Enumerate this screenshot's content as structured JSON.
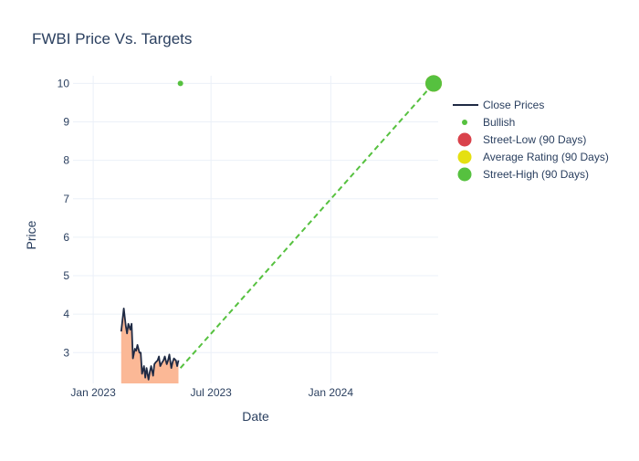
{
  "chart_data": {
    "type": "line",
    "title": "FWBI Price Vs. Targets",
    "xlabel": "Date",
    "ylabel": "Price",
    "xlim": [
      "2022-12-01",
      "2024-06-14"
    ],
    "ylim": [
      2.2,
      10.2
    ],
    "yticks": [
      3,
      4,
      5,
      6,
      7,
      8,
      9,
      10
    ],
    "xticks": [
      {
        "date": "2023-01-01",
        "label": "Jan 2023"
      },
      {
        "date": "2023-07-01",
        "label": "Jul 2023"
      },
      {
        "date": "2024-01-01",
        "label": "Jan 2024"
      }
    ],
    "grid": true,
    "legend_position": "right",
    "series": [
      {
        "name": "Close Prices",
        "color": "#1f2a44",
        "fill_color": "#fbb896",
        "x": [
          "2023-02-13",
          "2023-02-15",
          "2023-02-17",
          "2023-02-20",
          "2023-02-22",
          "2023-02-24",
          "2023-02-27",
          "2023-03-01",
          "2023-03-03",
          "2023-03-06",
          "2023-03-08",
          "2023-03-10",
          "2023-03-13",
          "2023-03-15",
          "2023-03-17",
          "2023-03-20",
          "2023-03-22",
          "2023-03-24",
          "2023-03-27",
          "2023-03-29",
          "2023-03-31",
          "2023-04-03",
          "2023-04-05",
          "2023-04-07",
          "2023-04-10",
          "2023-04-12",
          "2023-04-14",
          "2023-04-17",
          "2023-04-19",
          "2023-04-21",
          "2023-04-24",
          "2023-04-26",
          "2023-04-28",
          "2023-05-01",
          "2023-05-03",
          "2023-05-05",
          "2023-05-08",
          "2023-05-10",
          "2023-05-12"
        ],
        "y": [
          3.55,
          3.85,
          4.15,
          3.7,
          3.5,
          3.75,
          3.6,
          3.75,
          2.85,
          3.1,
          3.05,
          3.2,
          3.0,
          3.0,
          2.45,
          2.65,
          2.35,
          2.6,
          2.3,
          2.5,
          2.65,
          2.4,
          2.7,
          2.75,
          2.8,
          2.9,
          2.65,
          2.75,
          2.8,
          2.9,
          2.7,
          2.8,
          2.95,
          2.6,
          2.75,
          2.85,
          2.8,
          2.65,
          2.8
        ]
      },
      {
        "name": "Bullish",
        "color": "#56c13f",
        "points": [
          {
            "x": "2023-05-15",
            "y": 10
          }
        ]
      },
      {
        "name": "Street-Low (90 Days)",
        "color": "#d9424b",
        "points": [
          {
            "x": "2024-06-07",
            "y": 10
          }
        ]
      },
      {
        "name": "Average Rating (90 Days)",
        "color": "#e5e011",
        "points": [
          {
            "x": "2024-06-07",
            "y": 10
          }
        ]
      },
      {
        "name": "Street-High (90 Days)",
        "color": "#56c13f",
        "points": [
          {
            "x": "2024-06-07",
            "y": 10
          }
        ]
      }
    ],
    "projection": {
      "color": "#56c13f",
      "dashed": true,
      "from": {
        "x": "2023-05-15",
        "y": 2.6
      },
      "to": {
        "x": "2024-06-07",
        "y": 10
      }
    }
  }
}
